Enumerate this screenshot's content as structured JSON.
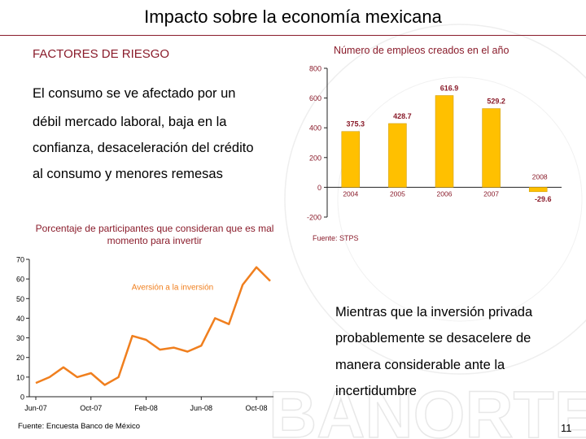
{
  "slide": {
    "title": "Impacto sobre la economía mexicana",
    "page_number": "11"
  },
  "risk": {
    "heading": "FACTORES DE RIESGO",
    "lines": [
      "El consumo se ve afectado por un",
      "débil mercado laboral, baja en la",
      "confianza, desaceleración del crédito",
      "al consumo y menores remesas"
    ]
  },
  "investment_text": {
    "lines": [
      "Mientras que la inversión privada",
      "probablemente se desacelere de",
      "manera considerable ante la",
      "incertidumbre"
    ]
  },
  "watermark": "BANORTE",
  "colors": {
    "accent": "#8a1c2b",
    "bar": "#ffc000",
    "line": "#f07f1e"
  },
  "chart_data": [
    {
      "type": "bar",
      "title": "Número de empleos creados en el año",
      "source": "Fuente: STPS",
      "categories": [
        "2004",
        "2005",
        "2006",
        "2007",
        "2008"
      ],
      "values": [
        375.3,
        428.7,
        616.9,
        529.2,
        -29.6
      ],
      "value_labels": [
        "375.3",
        "428.7",
        "616.9",
        "529.2",
        "-29.6"
      ],
      "ylim": [
        -200,
        800
      ],
      "yticks": [
        -200,
        0,
        200,
        400,
        600,
        800
      ],
      "ytick_labels": [
        "-200",
        "0",
        "200",
        "400",
        "600",
        "800"
      ]
    },
    {
      "type": "line",
      "title": "Porcentaje de participantes que consideran que es mal momento para invertir",
      "source": "Fuente: Encuesta Banco de México",
      "series_label": "Aversión a la inversión",
      "x": [
        "Jun-07",
        "Jul-07",
        "Ago-07",
        "Sep-07",
        "Oct-07",
        "Nov-07",
        "Dic-07",
        "Ene-08",
        "Feb-08",
        "Mar-08",
        "Abr-08",
        "May-08",
        "Jun-08",
        "Jul-08",
        "Ago-08",
        "Sep-08",
        "Oct-08",
        "Nov-08"
      ],
      "values": [
        7,
        10,
        15,
        10,
        12,
        6,
        10,
        31,
        29,
        24,
        25,
        23,
        26,
        40,
        37,
        57,
        66,
        59
      ],
      "xtick_indices": [
        0,
        4,
        8,
        12,
        16
      ],
      "xtick_labels": [
        "Jun-07",
        "Oct-07",
        "Feb-08",
        "Jun-08",
        "Oct-08"
      ],
      "ylim": [
        0,
        70
      ],
      "yticks": [
        0,
        10,
        20,
        30,
        40,
        50,
        60,
        70
      ],
      "ytick_labels": [
        "0",
        "10",
        "20",
        "30",
        "40",
        "50",
        "60",
        "70"
      ]
    }
  ]
}
